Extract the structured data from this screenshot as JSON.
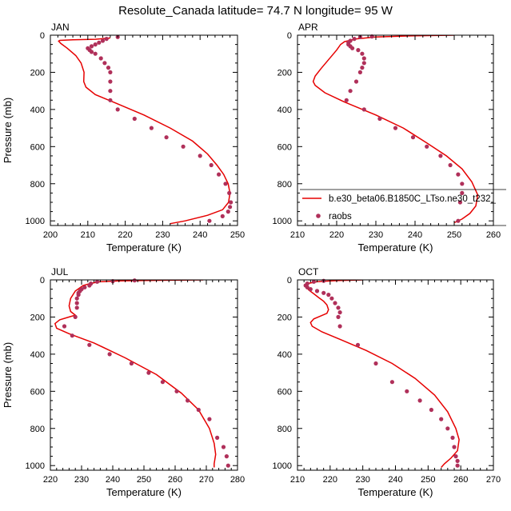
{
  "title": "Resolute_Canada  latitude= 74.7 N longitude= 95 W",
  "legend": {
    "model_label": "b.e30_beta06.B1850C_LTso.ne30_t232_",
    "obs_label": "raobs"
  },
  "colors": {
    "model_line": "#e60000",
    "obs_marker": "#b0305a",
    "axis": "#000000"
  },
  "chart_data": [
    {
      "type": "line",
      "panel_label": "JAN",
      "xlabel": "Temperature (K)",
      "ylabel": "Pressure (mb)",
      "xlim": [
        200,
        250
      ],
      "ylim": [
        0,
        1025
      ],
      "xticks": [
        200,
        210,
        220,
        230,
        240,
        250
      ],
      "yticks": [
        0,
        200,
        400,
        600,
        800,
        1000
      ],
      "y_inverted": true,
      "series": [
        {
          "name": "b.e30_beta06.B1850C_LTso.ne30_t232_",
          "kind": "line",
          "x": [
            216,
            212,
            206,
            202.5,
            202.2,
            202.8,
            204.5,
            206.8,
            208.2,
            209,
            208.9,
            209.5,
            212,
            218,
            225,
            232,
            238,
            242,
            244.5,
            246.3,
            247.5,
            248,
            247.6,
            246,
            242,
            236,
            232
          ],
          "y": [
            15,
            22,
            25,
            28,
            32,
            45,
            70,
            110,
            150,
            200,
            250,
            280,
            320,
            370,
            430,
            500,
            570,
            640,
            700,
            750,
            800,
            850,
            900,
            940,
            970,
            1000,
            1015
          ]
        },
        {
          "name": "raobs",
          "kind": "scatter",
          "x": [
            218,
            215,
            214,
            213,
            212,
            211,
            210,
            210.5,
            211,
            212,
            213.5,
            214.5,
            215.5,
            216,
            216,
            216,
            216,
            218,
            222.5,
            227,
            231,
            235.5,
            240,
            243,
            245,
            246.8,
            247.8,
            248.2,
            248,
            247.5,
            246,
            242.5
          ],
          "y": [
            10,
            20,
            30,
            40,
            50,
            60,
            70,
            80,
            90,
            100,
            125,
            150,
            175,
            200,
            250,
            300,
            350,
            400,
            450,
            500,
            550,
            600,
            650,
            700,
            750,
            800,
            850,
            900,
            925,
            950,
            975,
            1000
          ]
        }
      ]
    },
    {
      "type": "line",
      "panel_label": "APR",
      "xlabel": "Temperature (K)",
      "ylabel": "",
      "xlim": [
        210,
        260
      ],
      "ylim": [
        0,
        1025
      ],
      "xticks": [
        210,
        220,
        230,
        240,
        250,
        260
      ],
      "yticks": [
        0,
        200,
        400,
        600,
        800,
        1000
      ],
      "y_inverted": true,
      "series": [
        {
          "name": "b.e30_beta06.B1850C_LTso.ne30_t232_",
          "kind": "line",
          "x": [
            250,
            240,
            230,
            225,
            222,
            221,
            220,
            218,
            216,
            214.5,
            214,
            214.5,
            217,
            222,
            230,
            237,
            243,
            248,
            252,
            254.5,
            256,
            255.5,
            254,
            252,
            250
          ],
          "y": [
            0,
            3,
            10,
            20,
            35,
            50,
            80,
            130,
            180,
            220,
            250,
            270,
            310,
            360,
            430,
            500,
            580,
            650,
            720,
            790,
            860,
            920,
            960,
            990,
            1010
          ]
        },
        {
          "name": "raobs",
          "kind": "scatter",
          "x": [
            229,
            226,
            224.5,
            223.5,
            223,
            223,
            223.5,
            224,
            225.5,
            226.5,
            227,
            227,
            226.5,
            226,
            225,
            223.5,
            222.5,
            227,
            231,
            235,
            239.5,
            243,
            246.5,
            249,
            251,
            252,
            252,
            251.5,
            251
          ],
          "y": [
            7,
            10,
            20,
            30,
            40,
            50,
            60,
            70,
            80,
            100,
            125,
            150,
            175,
            200,
            250,
            300,
            350,
            400,
            450,
            500,
            550,
            600,
            650,
            700,
            750,
            800,
            850,
            900,
            1000
          ]
        }
      ]
    },
    {
      "type": "line",
      "panel_label": "JUL",
      "xlabel": "Temperature (K)",
      "ylabel": "Pressure (mb)",
      "xlim": [
        220,
        280
      ],
      "ylim": [
        0,
        1025
      ],
      "xticks": [
        220,
        230,
        240,
        250,
        260,
        270,
        280
      ],
      "yticks": [
        0,
        200,
        400,
        600,
        800,
        1000
      ],
      "y_inverted": true,
      "series": [
        {
          "name": "b.e30_beta06.B1850C_LTso.ne30_t232_",
          "kind": "line",
          "x": [
            269,
            255,
            242,
            236,
            233,
            230.5,
            228,
            226.5,
            226,
            226.5,
            228,
            226,
            223,
            221.5,
            222,
            226,
            234,
            244,
            254,
            262,
            267.5,
            271,
            272.5,
            273,
            272.5,
            272.5
          ],
          "y": [
            0,
            2,
            5,
            10,
            18,
            30,
            60,
            100,
            140,
            170,
            190,
            200,
            215,
            235,
            260,
            290,
            340,
            420,
            510,
            610,
            700,
            800,
            880,
            940,
            990,
            1010
          ]
        },
        {
          "name": "raobs",
          "kind": "scatter",
          "x": [
            247,
            240,
            235,
            233,
            232.5,
            231,
            230,
            229.5,
            229,
            229,
            228.5,
            228.5,
            228.5,
            228,
            224.5,
            227,
            232.5,
            239,
            246,
            251.5,
            256,
            260.5,
            264,
            267.5,
            271,
            273.5,
            275.5,
            276.5,
            277
          ],
          "y": [
            3,
            7,
            10,
            20,
            30,
            40,
            50,
            60,
            70,
            80,
            100,
            125,
            150,
            200,
            250,
            300,
            350,
            400,
            450,
            500,
            550,
            600,
            650,
            700,
            750,
            850,
            900,
            950,
            1000
          ]
        }
      ]
    },
    {
      "type": "line",
      "panel_label": "OCT",
      "xlabel": "Temperature (K)",
      "ylabel": "",
      "xlim": [
        210,
        270
      ],
      "ylim": [
        0,
        1025
      ],
      "xticks": [
        210,
        220,
        230,
        240,
        250,
        260,
        270
      ],
      "yticks": [
        0,
        200,
        400,
        600,
        800,
        1000
      ],
      "y_inverted": true,
      "series": [
        {
          "name": "b.e30_beta06.B1850C_LTso.ne30_t232_",
          "kind": "line",
          "x": [
            230,
            222,
            216,
            213,
            212.5,
            213.5,
            215,
            216.5,
            218,
            219,
            219.5,
            219,
            217,
            215,
            214,
            214.5,
            217.5,
            223,
            231,
            239,
            246,
            252,
            256,
            258.5,
            259.5,
            259,
            257,
            255,
            254
          ],
          "y": [
            0,
            4,
            10,
            20,
            35,
            55,
            75,
            95,
            115,
            135,
            160,
            180,
            195,
            210,
            230,
            250,
            280,
            320,
            380,
            450,
            530,
            620,
            710,
            800,
            860,
            920,
            960,
            990,
            1010
          ]
        },
        {
          "name": "raobs",
          "kind": "scatter",
          "x": [
            218,
            215,
            213,
            212.5,
            213,
            214,
            216,
            218,
            219.5,
            220.5,
            221.5,
            222.5,
            223,
            222.5,
            223,
            228.5,
            234,
            239,
            243.5,
            247.5,
            251,
            254,
            256,
            257.5,
            258,
            258.5,
            259,
            259
          ],
          "y": [
            5,
            10,
            20,
            30,
            40,
            50,
            60,
            70,
            80,
            100,
            125,
            150,
            175,
            200,
            250,
            350,
            450,
            550,
            600,
            650,
            700,
            750,
            800,
            850,
            900,
            950,
            975,
            1000
          ]
        }
      ]
    }
  ]
}
